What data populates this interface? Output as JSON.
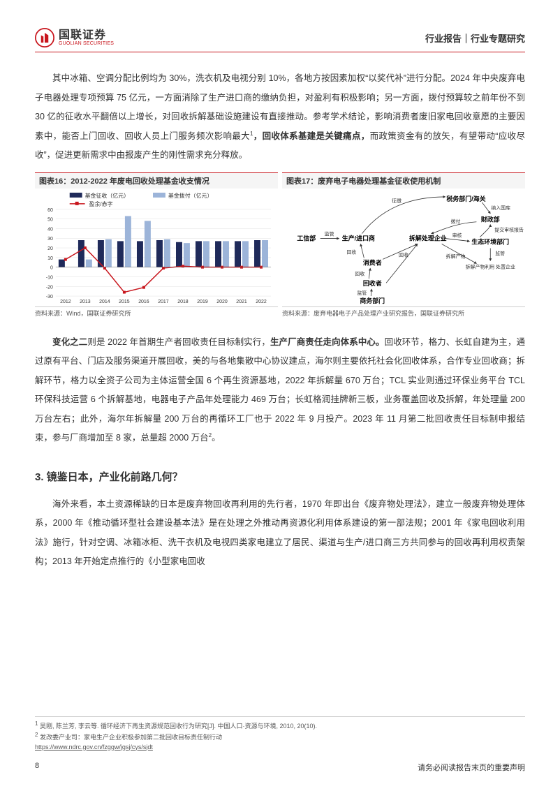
{
  "header": {
    "logo_cn": "国联证券",
    "logo_en": "GUOLIAN SECURITIES",
    "right": "行业报告｜行业专题研究"
  },
  "para1": "其中冰箱、空调分配比例均为 30%，洗衣机及电视分别 10%，各地方按因素加权“以奖代补”进行分配。2024 年中央废弃电子电器处理专项预算 75 亿元，一方面消除了生产进口商的缴纳负担，对盈利有积极影响；另一方面，拨付预算较之前年份不到 30 亿的征收水平翻倍以上增长，对回收拆解基础设施建设有直接推动。参考学术结论，影响消费者废旧家电回收意愿的主要因素中，能否上门回收、回收人员上门服务频次影响最大",
  "para1_sup": "1",
  "para1_bold": "，回收体系基建是关键痛点，",
  "para1_tail": "而政策资金有的放矢，有望带动“应收尽收”，促进更新需求中由报废产生的刚性需求充分释放。",
  "chart16": {
    "title": "图表16：2012-2022 年废电回收处理基金收支情况",
    "legend": {
      "a": "基金征收（亿元）",
      "b": "基金拨付（亿元）",
      "c": "盈余/赤字"
    },
    "years": [
      "2012",
      "2013",
      "2014",
      "2015",
      "2016",
      "2017",
      "2018",
      "2019",
      "2020",
      "2021",
      "2022"
    ],
    "levy": [
      8,
      28,
      28,
      27,
      27,
      28,
      26,
      27,
      27,
      27,
      28
    ],
    "disburse": [
      0,
      8,
      29,
      53,
      48,
      29,
      25,
      27,
      27,
      27,
      28
    ],
    "balance": [
      8,
      20,
      -1,
      -26,
      -21,
      -1,
      1,
      0,
      0,
      0,
      0
    ],
    "ylim": [
      -30,
      60
    ],
    "ytick": [
      -30,
      -20,
      -10,
      0,
      10,
      20,
      30,
      40,
      50,
      60
    ],
    "colors": {
      "levy": "#1f2a5a",
      "disburse": "#9cb4d9",
      "balance": "#c8161d",
      "grid": "#e0e0e0",
      "axis": "#666"
    },
    "source": "资料来源：Wind，国联证券研究所"
  },
  "chart17": {
    "title": "图表17：废弃电子电器处理基金征收使用机制",
    "nodes": {
      "tax": "税务部门/海关",
      "mof": "财政部",
      "moi": "工信部",
      "prod": "生产/进口商",
      "dis": "拆解处理企业",
      "eco": "生态环境部门",
      "cons": "消费者",
      "recy": "回收者",
      "moc": "商务部门",
      "util": "拆解产物利用\n处置企业"
    },
    "edge_labels": {
      "levy": "征缴",
      "tolib": "纳入国库",
      "pay": "拨付",
      "sup1": "监管",
      "sup2": "监管",
      "sup3": "监管",
      "sup4": "监管",
      "aud": "审核",
      "sub": "提交审核报告",
      "rec1": "回收",
      "rec2": "回收",
      "rec3": "回收",
      "prod2": "拆解产物"
    },
    "source": "资料来源：废弃电器电子产品处理产业研究报告，国联证券研究所"
  },
  "para2_lead": "变化之二",
  "para2_mid1": "则是 2022 年首期生产者回收责任目标制实行，",
  "para2_bold": "生产厂商责任走向体系中心。",
  "para2_body": "回收环节，格力、长虹自建为主，通过原有平台、门店及服务渠道开展回收，美的与各地集散中心协议建点，海尔则主要依托社会化回收体系，合作专业回收商；拆解环节，格力以全资子公司为主体运营全国 6 个再生资源基地，2022 年拆解量 670 万台；TCL 实业则通过环保业务平台 TCL 环保科技运营 6 个拆解基地，电器电子产品年处理能力 469 万台；长虹格润挂牌新三板，业务覆盖回收及拆解，年处理量 200 万台左右；此外，海尔年拆解量 200 万台的再循环工厂也于 2022 年 9 月投产。2023 年 11 月第二批回收责任目标制申报结束，参与厂商增加至 8 家，总量超 2000 万台",
  "para2_sup": "2",
  "para2_tail": "。",
  "section3": "3. 镜鉴日本，产业化前路几何？",
  "para3": "海外来看，本土资源稀缺的日本是废弃物回收再利用的先行者，1970 年即出台《废弃物处理法》，建立一般废弃物处理体系，2000 年《推动循环型社会建设基本法》是在处理之外推动再资源化利用体系建设的第一部法规；2001 年《家电回收利用法》施行，针对空调、冰箱冰柜、洗干衣机及电视四类家电建立了居民、渠道与生产/进口商三方共同参与的回收再利用权责架构；2013 年开始定点推行的《小型家电回收",
  "footnotes": {
    "f1_num": "1",
    "f1": " 吴刚, 陈兰芳, 李云等. 循环经济下再生资源规范回收行为研究[J]. 中国人口·资源与环境, 2010, 20(10).",
    "f2_num": "2",
    "f2": " 发改委产业司：家电生产企业积极参加第二批回收目标责任制行动",
    "f2_url": "https://www.ndrc.gov.cn/fzggw/jgsj/cys/sjdt"
  },
  "footer": {
    "page": "8",
    "disclaimer": "请务必阅读报告末页的重要声明"
  }
}
